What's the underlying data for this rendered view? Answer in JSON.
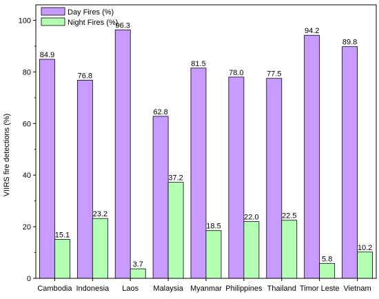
{
  "chart_data": {
    "type": "bar",
    "categories": [
      "Cambodia",
      "Indonesia",
      "Laos",
      "Malaysia",
      "Myanmar",
      "Philippines",
      "Thailand",
      "Timor Leste",
      "Vietnam"
    ],
    "series": [
      {
        "name": "Day Fires (%)",
        "color": "#c79bff",
        "values": [
          84.9,
          76.8,
          96.3,
          62.8,
          81.5,
          78.0,
          77.5,
          94.2,
          89.8
        ],
        "labels": [
          "84.9",
          "76.8",
          "96.3",
          "62.8",
          "81.5",
          "78.0",
          "77.5",
          "94.2",
          "89.8"
        ]
      },
      {
        "name": "Night Fires (%)",
        "color": "#b3ffb3",
        "values": [
          15.1,
          23.2,
          3.7,
          37.2,
          18.5,
          22.0,
          22.5,
          5.8,
          10.2
        ],
        "labels": [
          "15.1",
          "23.2",
          "3.7",
          "37.2",
          "18.5",
          "22.0",
          "22.5",
          "5.8",
          "10.2"
        ]
      }
    ],
    "ylabel": "VIIRS fire detections (%)",
    "xlabel": "",
    "ylim": [
      0,
      106
    ],
    "yticks": [
      "0",
      "20",
      "40",
      "60",
      "80",
      "100"
    ],
    "legend_position": "top-left",
    "grid": false
  }
}
